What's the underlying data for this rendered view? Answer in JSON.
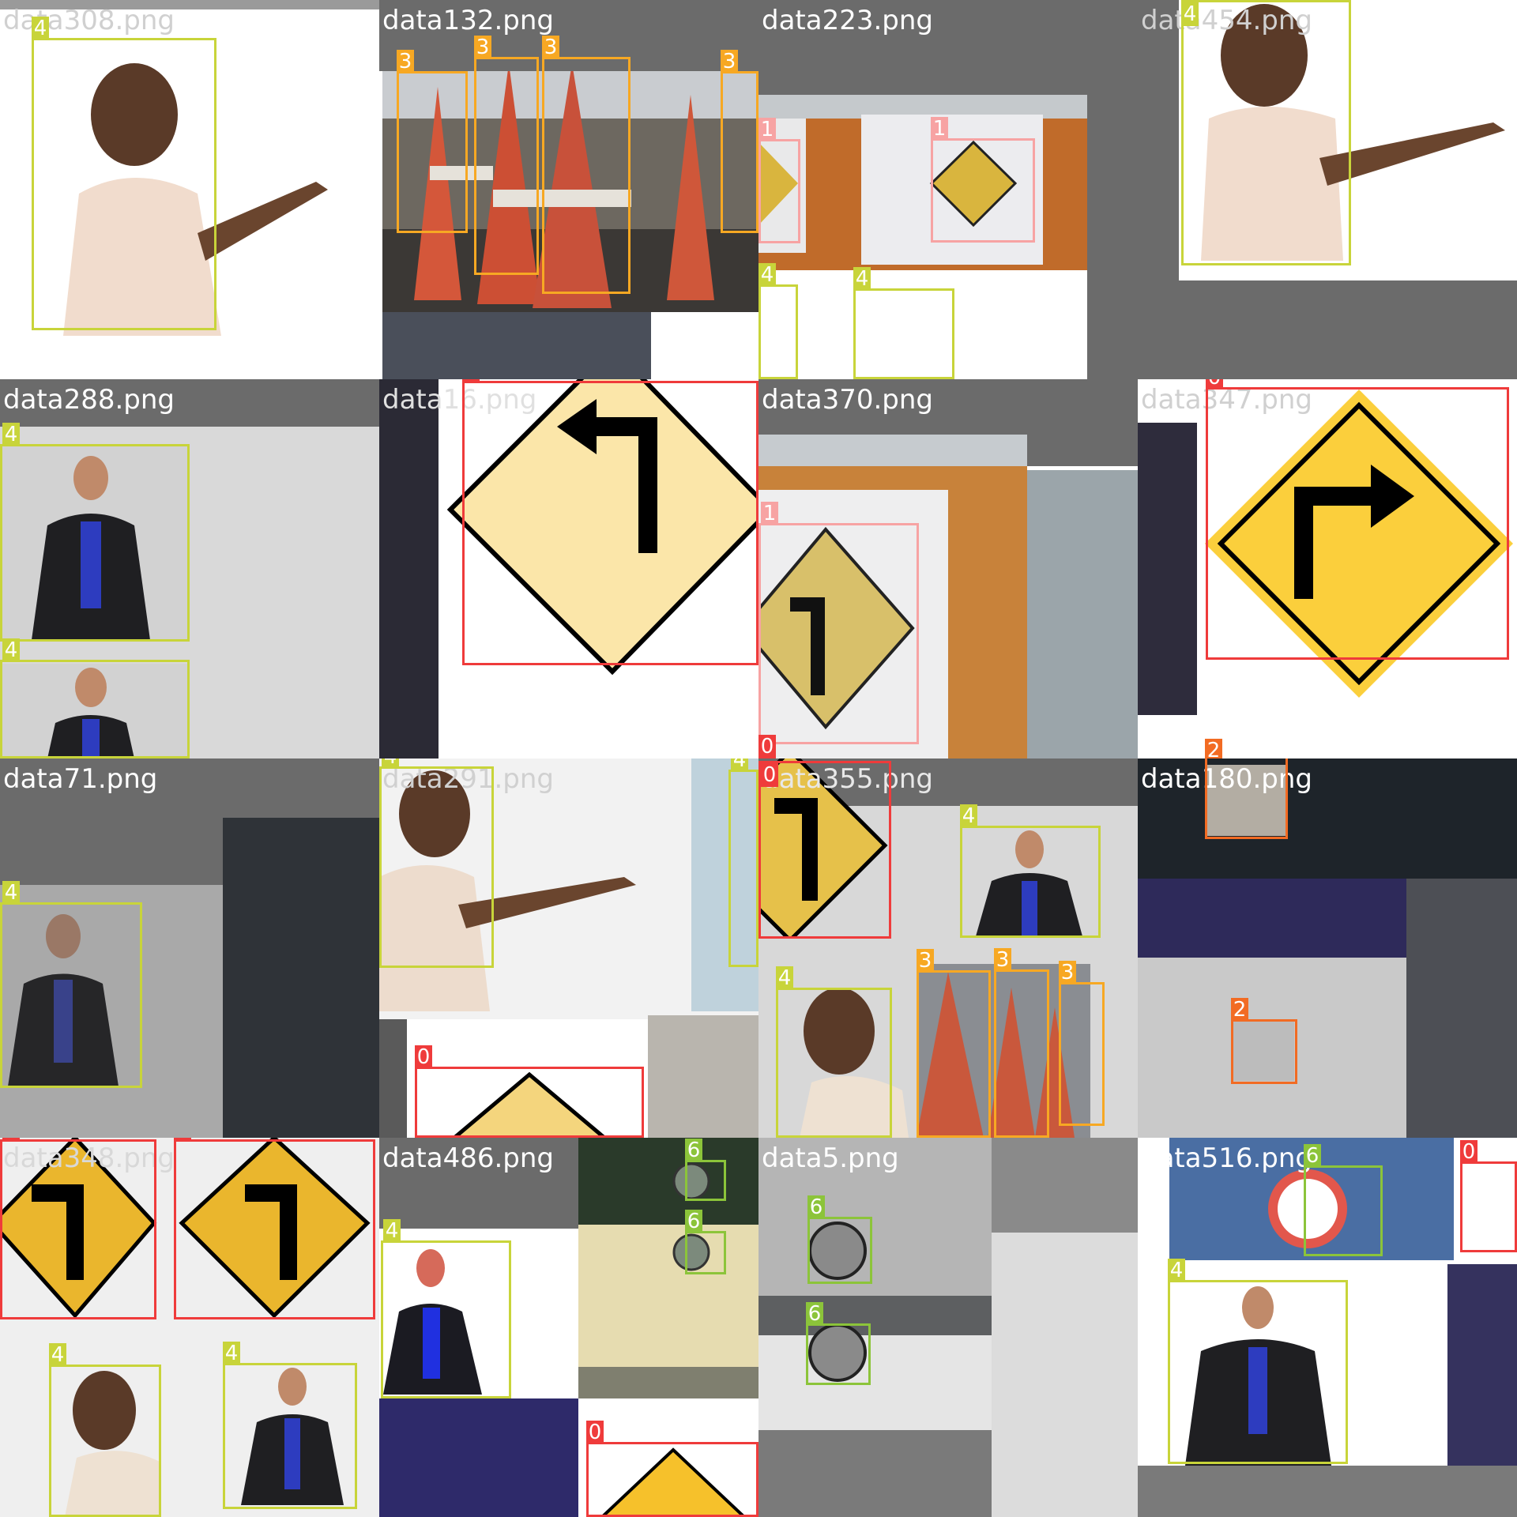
{
  "title": "",
  "legend": {
    "colors": {
      "0": "#ef3b3b",
      "1": "#f7a3a3",
      "2": "#f26b23",
      "3": "#f7a823",
      "4": "#c8d43a",
      "6": "#8cc43a"
    }
  },
  "tiles": [
    {
      "name": "data308.png",
      "caption": "data308.png",
      "boxes": [
        {
          "label": "4"
        }
      ]
    },
    {
      "name": "data132.png",
      "caption": "data132.png",
      "boxes": [
        {
          "label": "3"
        },
        {
          "label": "3"
        },
        {
          "label": "3"
        },
        {
          "label": "3"
        }
      ]
    },
    {
      "name": "data223.png",
      "caption": "data223.png",
      "boxes": [
        {
          "label": "1"
        },
        {
          "label": "1"
        },
        {
          "label": "4"
        },
        {
          "label": "4"
        }
      ]
    },
    {
      "name": "data454.png",
      "caption": "data454.png",
      "boxes": [
        {
          "label": "4"
        }
      ]
    },
    {
      "name": "data288.png",
      "caption": "data288.png",
      "boxes": [
        {
          "label": "4"
        },
        {
          "label": "4"
        }
      ]
    },
    {
      "name": "data16.png",
      "caption": "data16.png",
      "boxes": [
        {
          "label": "0"
        }
      ]
    },
    {
      "name": "data370.png",
      "caption": "data370.png",
      "boxes": [
        {
          "label": "1"
        },
        {
          "label": "0"
        }
      ]
    },
    {
      "name": "data347.png",
      "caption": "data347.png",
      "boxes": [
        {
          "label": "0"
        },
        {
          "label": "2"
        }
      ]
    },
    {
      "name": "data71.png",
      "caption": "data71.png",
      "boxes": [
        {
          "label": "4"
        }
      ]
    },
    {
      "name": "data291.png",
      "caption": "data291.png",
      "boxes": [
        {
          "label": "4"
        },
        {
          "label": "4"
        },
        {
          "label": "0"
        }
      ]
    },
    {
      "name": "data355.png",
      "caption": "data355.png",
      "boxes": [
        {
          "label": "4"
        },
        {
          "label": "3"
        },
        {
          "label": "3"
        },
        {
          "label": "3"
        },
        {
          "label": "4"
        },
        {
          "label": "0"
        }
      ]
    },
    {
      "name": "data180.png",
      "caption": "data180.png",
      "boxes": [
        {
          "label": "2"
        }
      ]
    },
    {
      "name": "data348.png",
      "caption": "data348.png",
      "boxes": [
        {
          "label": "0"
        },
        {
          "label": "0"
        },
        {
          "label": "4"
        },
        {
          "label": "4"
        }
      ]
    },
    {
      "name": "data486.png",
      "caption": "data486.png",
      "boxes": [
        {
          "label": "4"
        },
        {
          "label": "6"
        },
        {
          "label": "6"
        },
        {
          "label": "0"
        }
      ]
    },
    {
      "name": "data5.png",
      "caption": "data5.png",
      "boxes": [
        {
          "label": "6"
        },
        {
          "label": "6"
        }
      ]
    },
    {
      "name": "data516.png",
      "caption": "data516.png",
      "boxes": [
        {
          "label": "6"
        },
        {
          "label": "4"
        },
        {
          "label": "0"
        }
      ]
    }
  ]
}
